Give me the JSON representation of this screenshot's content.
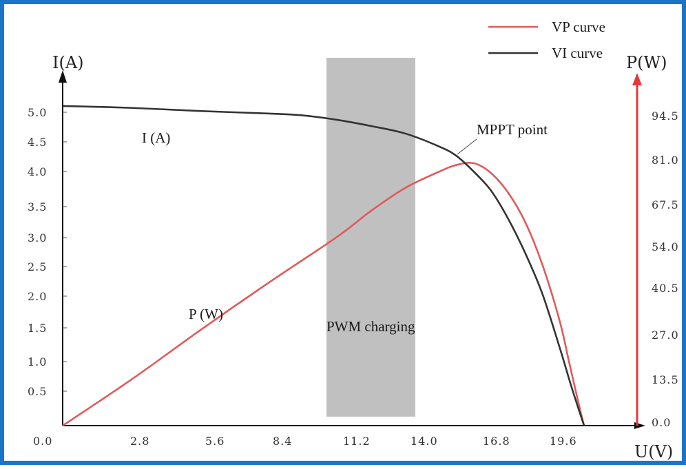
{
  "chart_data": {
    "type": "line",
    "x_axis": {
      "label": "U(V)",
      "ticks": [
        "0.0",
        "2.8",
        "5.6",
        "8.4",
        "11.2",
        "14.0",
        "16.8",
        "19.6"
      ],
      "range": [
        0,
        23.8
      ]
    },
    "y_left_axis": {
      "label": "I(A)",
      "ticks": [
        "0.5",
        "1.0",
        "1.5",
        "2.0",
        "2.5",
        "3.0",
        "3.5",
        "4.0",
        "4.5",
        "5.0"
      ],
      "range": [
        0,
        5.7
      ]
    },
    "y_right_axis": {
      "label": "P(W)",
      "ticks": [
        "0.0",
        "13.5",
        "27.0",
        "40.5",
        "54.0",
        "67.5",
        "81.0",
        "94.5"
      ],
      "range": [
        0,
        108
      ]
    },
    "series": [
      {
        "name": "VP curve",
        "axis": "right",
        "color": "#e05a5a",
        "points": [
          [
            0,
            0
          ],
          [
            2.8,
            14
          ],
          [
            5.6,
            29
          ],
          [
            8.4,
            43.5
          ],
          [
            11.2,
            57.5
          ],
          [
            12.6,
            65.5
          ],
          [
            14.0,
            72.5
          ],
          [
            15.4,
            77.5
          ],
          [
            16.1,
            79.5
          ],
          [
            16.8,
            80
          ],
          [
            17.5,
            77
          ],
          [
            18.2,
            71
          ],
          [
            18.9,
            62
          ],
          [
            19.6,
            49
          ],
          [
            20.3,
            32
          ],
          [
            20.7,
            19
          ],
          [
            21.1,
            6
          ],
          [
            21.3,
            0
          ]
        ]
      },
      {
        "name": "VI curve",
        "axis": "left",
        "color": "#333333",
        "points": [
          [
            0,
            5.1
          ],
          [
            2.8,
            5.07
          ],
          [
            5.6,
            5.02
          ],
          [
            8.4,
            4.98
          ],
          [
            9.8,
            4.95
          ],
          [
            11.2,
            4.88
          ],
          [
            12.6,
            4.78
          ],
          [
            14.0,
            4.66
          ],
          [
            15.4,
            4.45
          ],
          [
            16.1,
            4.3
          ],
          [
            16.8,
            4.05
          ],
          [
            17.5,
            3.75
          ],
          [
            18.2,
            3.3
          ],
          [
            18.9,
            2.75
          ],
          [
            19.6,
            2.1
          ],
          [
            20.3,
            1.25
          ],
          [
            20.8,
            0.6
          ],
          [
            21.3,
            0
          ]
        ]
      }
    ],
    "shaded_region": {
      "label": "PWM charging",
      "x_range": [
        10.85,
        14.3
      ],
      "color": "#c0c0c0"
    },
    "annotations": [
      {
        "text": "I (A)"
      },
      {
        "text": "P (W)"
      },
      {
        "text": "MPPT point"
      }
    ],
    "legend_position": "top-right",
    "grid": false
  }
}
